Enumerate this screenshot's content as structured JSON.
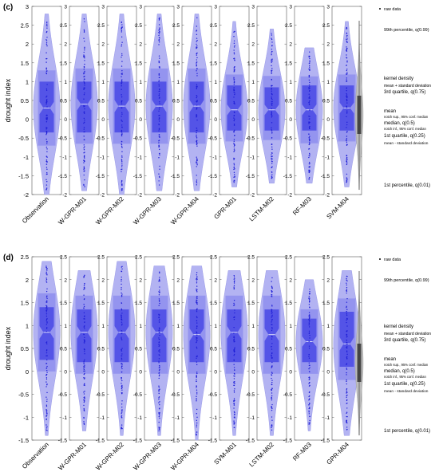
{
  "colors": {
    "violin": "#b3b3f2",
    "box": "#4d4de6",
    "box_outer": "#6f6fea",
    "points": "#1f1fd6",
    "axis": "#333333",
    "legend_dark": "#4a4a4a",
    "legend_light": "#bdbdbd"
  },
  "chart_data": [
    {
      "type": "violin",
      "panel_label": "(c)",
      "ylabel": "drought index",
      "ylim": [
        -2,
        3
      ],
      "yticks": [
        "-2",
        "-1.5",
        "-1",
        "-0.5",
        "0",
        "0.5",
        "1",
        "1.5",
        "2",
        "2.5",
        "3"
      ],
      "categories": [
        "Observation",
        "W-GPR-M01",
        "W-GPR-M02",
        "W-GPR-M03",
        "W-GPR-M04",
        "GPR-M01",
        "LSTM-M02",
        "RF-M03",
        "SVM-M04"
      ],
      "series": [
        {
          "p01": -1.9,
          "q25": -0.35,
          "median": 0.3,
          "q75": 1.0,
          "p99": 2.7,
          "mean": 0.3
        },
        {
          "p01": -1.8,
          "q25": -0.35,
          "median": 0.4,
          "q75": 1.0,
          "p99": 2.7,
          "mean": 0.35
        },
        {
          "p01": -1.9,
          "q25": -0.35,
          "median": 0.35,
          "q75": 1.0,
          "p99": 2.7,
          "mean": 0.35
        },
        {
          "p01": -1.8,
          "q25": -0.35,
          "median": 0.35,
          "q75": 1.0,
          "p99": 2.7,
          "mean": 0.35
        },
        {
          "p01": -1.8,
          "q25": -0.35,
          "median": 0.35,
          "q75": 1.0,
          "p99": 2.7,
          "mean": 0.35
        },
        {
          "p01": -1.7,
          "q25": -0.3,
          "median": 0.25,
          "q75": 0.9,
          "p99": 2.5,
          "mean": 0.3
        },
        {
          "p01": -1.6,
          "q25": -0.3,
          "median": 0.25,
          "q75": 0.85,
          "p99": 2.3,
          "mean": 0.3
        },
        {
          "p01": -1.6,
          "q25": -0.3,
          "median": 0.25,
          "q75": 0.9,
          "p99": 1.8,
          "mean": 0.25
        },
        {
          "p01": -1.7,
          "q25": -0.3,
          "median": 0.3,
          "q75": 0.9,
          "p99": 2.5,
          "mean": 0.3
        }
      ],
      "legend": {
        "raw": "raw data",
        "p99": "99th percentile, q(0.99)",
        "kd": "kernel density",
        "msd_plus": "mean + standard deviation",
        "q75": "3rd quartile, q(0.75)",
        "mean": "mean",
        "notch_sup": "notch sup., 95% conf. median",
        "median": "median, q(0.5)",
        "notch_inf": "notch inf., 95% conf. median",
        "q25": "1st quartile, q(0.25)",
        "msd_minus": "mean - standard deviation",
        "p01": "1st percentile, q(0.01)"
      }
    },
    {
      "type": "violin",
      "panel_label": "(d)",
      "ylabel": "drought index",
      "ylim": [
        -1.5,
        2.5
      ],
      "yticks": [
        "-1.5",
        "-1",
        "-0.5",
        "0",
        "0.5",
        "1",
        "1.5",
        "2",
        "2.5"
      ],
      "categories": [
        "Observation",
        "W-GPR-M01",
        "W-GPR-M02",
        "W-GPR-M03",
        "W-GPR-M04",
        "SVM-M01",
        "LSTM-M02",
        "RF-M03",
        "GPR-M04"
      ],
      "series": [
        {
          "p01": -1.3,
          "q25": 0.25,
          "median": 0.85,
          "q75": 1.4,
          "p99": 2.3,
          "mean": 0.85
        },
        {
          "p01": -1.2,
          "q25": 0.2,
          "median": 0.85,
          "q75": 1.35,
          "p99": 2.1,
          "mean": 0.8
        },
        {
          "p01": -1.3,
          "q25": 0.2,
          "median": 0.85,
          "q75": 1.35,
          "p99": 2.3,
          "mean": 0.8
        },
        {
          "p01": -1.3,
          "q25": 0.2,
          "median": 0.85,
          "q75": 1.35,
          "p99": 2.2,
          "mean": 0.8
        },
        {
          "p01": -1.4,
          "q25": 0.2,
          "median": 0.8,
          "q75": 1.35,
          "p99": 2.2,
          "mean": 0.8
        },
        {
          "p01": -1.3,
          "q25": 0.2,
          "median": 0.85,
          "q75": 1.35,
          "p99": 2.1,
          "mean": 0.8
        },
        {
          "p01": -1.3,
          "q25": 0.2,
          "median": 0.8,
          "q75": 1.35,
          "p99": 2.1,
          "mean": 0.8
        },
        {
          "p01": -1.2,
          "q25": 0.2,
          "median": 0.65,
          "q75": 1.15,
          "p99": 1.9,
          "mean": 0.65
        },
        {
          "p01": -1.3,
          "q25": 0.1,
          "median": 0.6,
          "q75": 1.3,
          "p99": 2.1,
          "mean": 0.7
        }
      ],
      "legend": {
        "raw": "raw data",
        "p99": "99th percentile, q(0.99)",
        "kd": "kernel density",
        "msd_plus": "mean + standard deviation",
        "q75": "3rd quartile, q(0.75)",
        "mean": "mean",
        "notch_sup": "notch sup., 95% conf. median",
        "median": "median, q(0.5)",
        "notch_inf": "notch inf., 95% conf. median",
        "q25": "1st quartile, q(0.25)",
        "msd_minus": "mean - standard deviation",
        "p01": "1st percentile, q(0.01)"
      }
    }
  ]
}
